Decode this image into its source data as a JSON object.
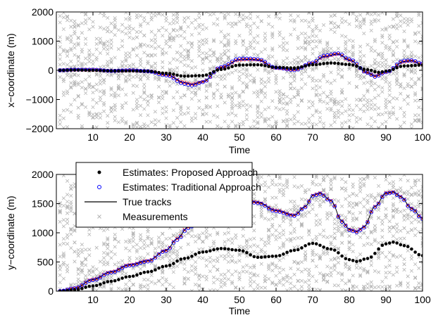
{
  "colors": {
    "measurement": "#b4b4b4",
    "proposed": "#000000",
    "traditional": "#0000ff",
    "truth": "#000000",
    "true_tracks_red": "#ff0000"
  },
  "chart_data": [
    {
      "type": "scatter",
      "xlabel": "Time",
      "ylabel": "x−coordinate (m)",
      "xlim": [
        0,
        100
      ],
      "ylim": [
        -2000,
        2000
      ],
      "xticks": [
        10,
        20,
        30,
        40,
        50,
        60,
        70,
        80,
        90,
        100
      ],
      "yticks": [
        -2000,
        -1000,
        0,
        1000,
        2000
      ],
      "xtick_labels": [
        "10",
        "20",
        "30",
        "40",
        "50",
        "60",
        "70",
        "80",
        "90",
        "100"
      ],
      "ytick_labels": [
        "−2000",
        "−1000",
        "0",
        "1000",
        "2000"
      ],
      "grid": false,
      "series": [
        {
          "role": "truth",
          "x": [
            1,
            5,
            10,
            15,
            20,
            25,
            30,
            35,
            37,
            40,
            45,
            50,
            53,
            55,
            60,
            65,
            70,
            73,
            77,
            80,
            85,
            87,
            90,
            95,
            97,
            100
          ],
          "y": [
            0,
            20,
            20,
            -20,
            0,
            -30,
            -150,
            -420,
            -480,
            -390,
            100,
            360,
            380,
            360,
            80,
            20,
            250,
            470,
            560,
            350,
            -80,
            -200,
            -60,
            300,
            330,
            200
          ]
        },
        {
          "role": "traditional",
          "x": [
            1,
            5,
            10,
            15,
            20,
            25,
            30,
            35,
            37,
            40,
            45,
            50,
            53,
            55,
            60,
            65,
            70,
            73,
            77,
            80,
            85,
            87,
            90,
            95,
            97,
            100
          ],
          "y": [
            0,
            20,
            20,
            -20,
            0,
            -30,
            -170,
            -460,
            -520,
            -400,
            110,
            400,
            400,
            380,
            90,
            10,
            260,
            500,
            580,
            380,
            -80,
            -220,
            -60,
            330,
            340,
            230
          ]
        },
        {
          "role": "proposed",
          "x": [
            1,
            5,
            10,
            15,
            20,
            25,
            30,
            35,
            40,
            45,
            50,
            55,
            60,
            65,
            70,
            75,
            80,
            85,
            88,
            90,
            95,
            100
          ],
          "y": [
            0,
            10,
            0,
            -20,
            -20,
            -30,
            -100,
            -200,
            -180,
            30,
            180,
            190,
            100,
            80,
            190,
            250,
            200,
            20,
            -70,
            -30,
            150,
            180
          ]
        }
      ]
    },
    {
      "type": "scatter",
      "xlabel": "Time",
      "ylabel": "y−coordinate (m)",
      "xlim": [
        0,
        100
      ],
      "ylim": [
        0,
        2000
      ],
      "xticks": [
        10,
        20,
        30,
        40,
        50,
        60,
        70,
        80,
        90,
        100
      ],
      "yticks": [
        0,
        500,
        1000,
        1500,
        2000
      ],
      "xtick_labels": [
        "10",
        "20",
        "30",
        "40",
        "50",
        "60",
        "70",
        "80",
        "90",
        "100"
      ],
      "ytick_labels": [
        "0",
        "500",
        "1000",
        "1500",
        "2000"
      ],
      "grid": false,
      "legend": {
        "placement": "top-left",
        "entries": [
          {
            "label": "Estimates: Proposed Approach",
            "marker": "filled-circle",
            "role": "proposed"
          },
          {
            "label": "Estimates: Traditional Approach",
            "marker": "open-circle",
            "role": "traditional"
          },
          {
            "label": "True tracks",
            "marker": "line",
            "role": "truth"
          },
          {
            "label": "Measurements",
            "marker": "cross",
            "role": "measurement"
          }
        ]
      },
      "series": [
        {
          "role": "truth",
          "x": [
            1,
            5,
            10,
            15,
            20,
            25,
            30,
            33,
            36,
            40,
            45,
            50,
            55,
            60,
            65,
            68,
            70,
            72,
            75,
            78,
            80,
            82,
            84,
            87,
            90,
            92,
            94,
            97,
            100
          ],
          "y": [
            0,
            50,
            200,
            330,
            450,
            520,
            700,
            900,
            1100,
            1300,
            1500,
            1600,
            1520,
            1380,
            1300,
            1450,
            1640,
            1680,
            1550,
            1200,
            1060,
            1020,
            1100,
            1450,
            1680,
            1700,
            1620,
            1420,
            1250
          ]
        },
        {
          "role": "traditional",
          "x": [
            1,
            5,
            10,
            15,
            20,
            25,
            30,
            33,
            36,
            40,
            45,
            50,
            55,
            60,
            65,
            68,
            70,
            72,
            75,
            78,
            80,
            82,
            84,
            87,
            90,
            92,
            94,
            97,
            100
          ],
          "y": [
            0,
            50,
            190,
            320,
            440,
            510,
            690,
            880,
            1080,
            1290,
            1490,
            1590,
            1510,
            1370,
            1290,
            1440,
            1630,
            1670,
            1540,
            1190,
            1050,
            1010,
            1090,
            1440,
            1670,
            1690,
            1610,
            1410,
            1240
          ]
        },
        {
          "role": "proposed",
          "x": [
            1,
            5,
            10,
            15,
            20,
            25,
            30,
            35,
            40,
            45,
            50,
            55,
            60,
            65,
            70,
            75,
            80,
            82,
            85,
            90,
            92,
            95,
            100
          ],
          "y": [
            0,
            20,
            90,
            170,
            250,
            330,
            430,
            560,
            670,
            730,
            700,
            580,
            600,
            700,
            820,
            720,
            540,
            510,
            560,
            810,
            840,
            780,
            610
          ]
        }
      ]
    }
  ]
}
